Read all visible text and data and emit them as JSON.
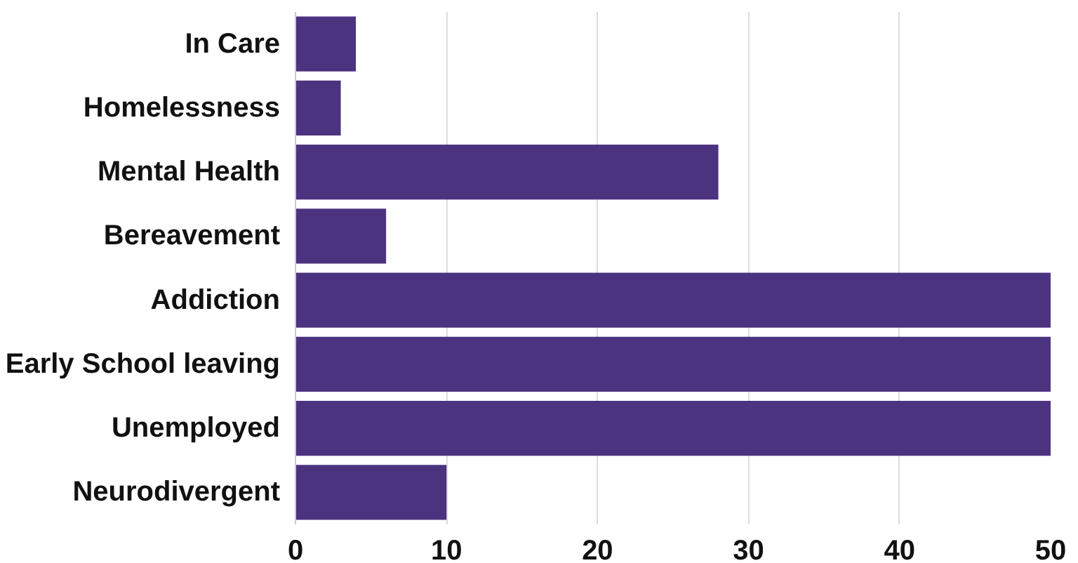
{
  "chart_data": {
    "type": "bar",
    "orientation": "horizontal",
    "categories": [
      "In Care",
      "Homelessness",
      "Mental Health",
      "Bereavement",
      "Addiction",
      "Early School leaving",
      "Unemployed",
      "Neurodivergent"
    ],
    "values": [
      4,
      3,
      28,
      6,
      50,
      50,
      50,
      10
    ],
    "color": "#4b3380",
    "xlim": [
      0,
      50
    ],
    "xticks": [
      0,
      10,
      20,
      30,
      40,
      50
    ],
    "grid": "x"
  }
}
